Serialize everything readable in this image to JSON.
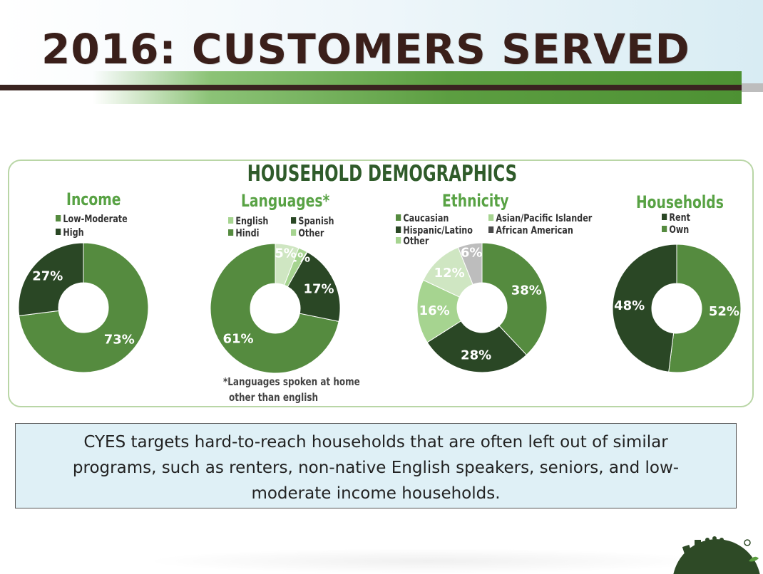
{
  "page": {
    "title": "2016: CUSTOMERS SERVED",
    "colors": {
      "title": "#3a1f1a",
      "accent_green": "#5c9e41",
      "rule_brown": "#3a2420",
      "callout_bg": "#dff0f6"
    }
  },
  "chart_data": {
    "type": "pie",
    "title": "HOUSEHOLD DEMOGRAPHICS",
    "variant": "donut",
    "legend_placement": "top-left of each chart",
    "charts": [
      {
        "title": "Income",
        "slices": [
          {
            "label": "Low-Moderate",
            "value": 73,
            "text": "73%",
            "color": "#558b3f"
          },
          {
            "label": "High",
            "value": 27,
            "text": "27%",
            "color": "#2a4725"
          }
        ]
      },
      {
        "title": "Languages*",
        "slices": [
          {
            "label": "Spanish",
            "value": 61,
            "text": "61%",
            "color": "#558b3f"
          },
          {
            "label": "Hindi",
            "value": 17,
            "text": "17%",
            "color": "#2a4725"
          },
          {
            "label": "English",
            "value": 2,
            "text": "2%",
            "color": "#a6d490"
          },
          {
            "label": "Other",
            "value": 5,
            "text": "5%",
            "color": "#cfe6c2"
          }
        ],
        "legend_order": [
          "English",
          "Spanish",
          "Hindi",
          "Other"
        ],
        "note": [
          "*Languages spoken at home",
          "other than english"
        ]
      },
      {
        "title": "Ethnicity",
        "slices": [
          {
            "label": "Caucasian",
            "value": 38,
            "text": "38%",
            "color": "#558b3f"
          },
          {
            "label": "Hispanic/Latino",
            "value": 28,
            "text": "28%",
            "color": "#2a4725"
          },
          {
            "label": "Other",
            "value": 16,
            "text": "16%",
            "color": "#a6d490"
          },
          {
            "label": "Asian/Pacific Islander",
            "value": 12,
            "text": "12%",
            "color": "#cfe6c2"
          },
          {
            "label": "African American",
            "value": 6,
            "text": "6%",
            "color": "#bdbdbd"
          }
        ],
        "legend_order": [
          "Caucasian",
          "Asian/Pacific Islander",
          "Hispanic/Latino",
          "African American",
          "Other"
        ]
      },
      {
        "title": "Households",
        "slices": [
          {
            "label": "Own",
            "value": 52,
            "text": "52%",
            "color": "#558b3f"
          },
          {
            "label": "Rent",
            "value": 48,
            "text": "48%",
            "color": "#2a4725"
          }
        ],
        "legend_order": [
          "Rent",
          "Own"
        ]
      }
    ]
  },
  "callout": {
    "text": "CYES targets hard-to-reach households that are often left out of similar programs, such as renters, non-native English speakers, seniors, and low-moderate income households."
  }
}
